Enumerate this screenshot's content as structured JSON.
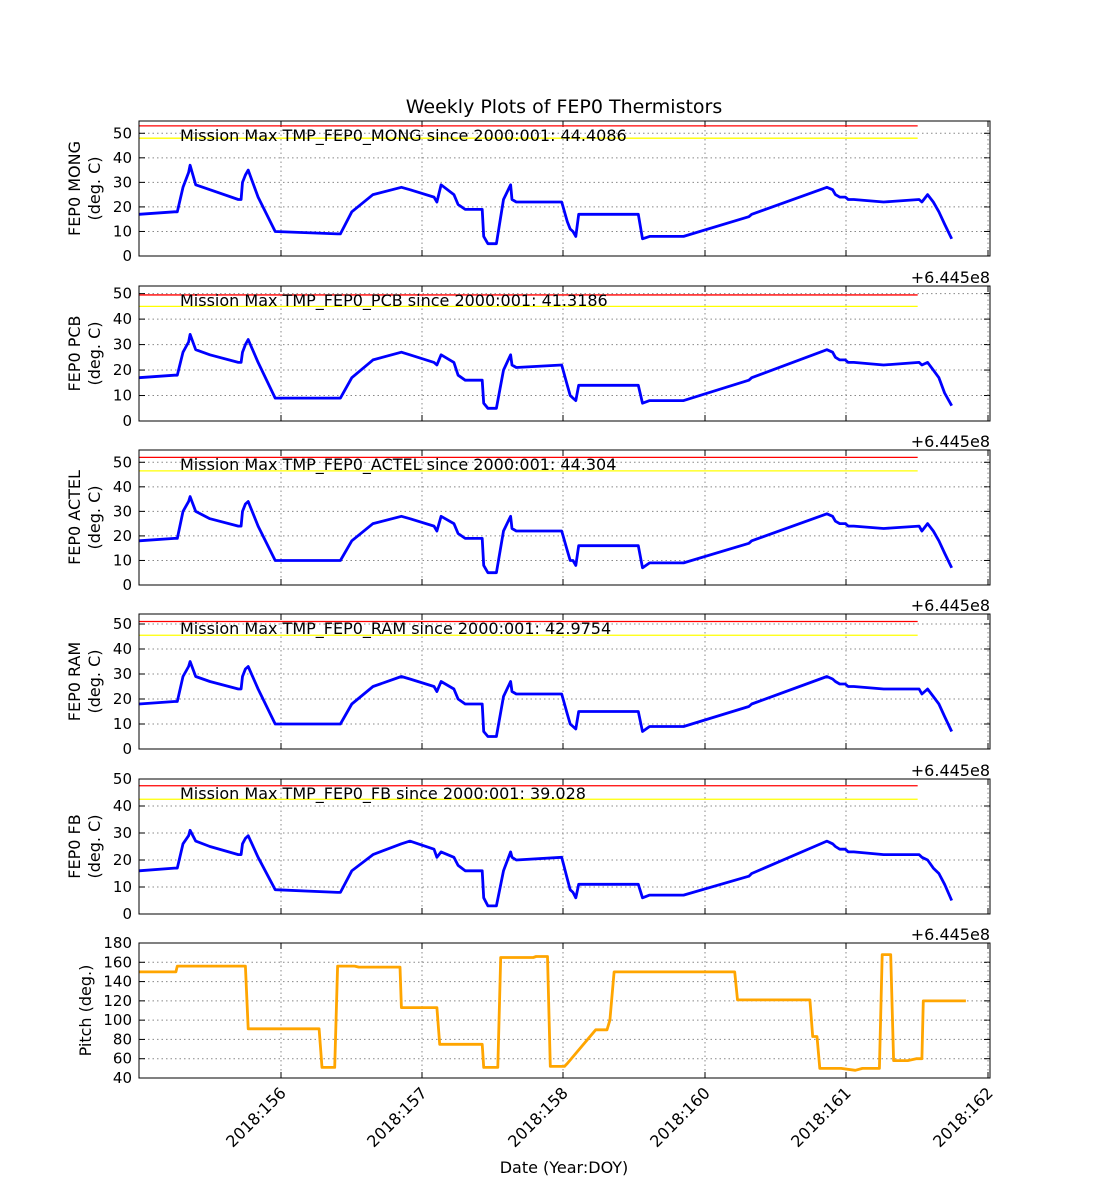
{
  "figure": {
    "title": "Weekly Plots of FEP0 Thermistors",
    "xlabel": "Date (Year:DOY)",
    "x_ticks": [
      "2018:156",
      "2018:157",
      "2018:158",
      "2018:160",
      "2018:161",
      "2018:162"
    ],
    "offset_text": "+6.445e8"
  },
  "chart_data": [
    {
      "type": "line",
      "ylabel": [
        "FEP0 MONG",
        "(deg. C)"
      ],
      "ylim": [
        0,
        55
      ],
      "yticks": [
        "0",
        "10",
        "20",
        "30",
        "40",
        "50"
      ],
      "grid": true,
      "annotation": "Mission Max TMP_FEP0_MONG since 2000:001: 44.4086",
      "limit_lines": [
        {
          "y": 53,
          "color": "#ff0000"
        },
        {
          "y": 48,
          "color": "#ffff00"
        }
      ],
      "series_color": "#0000ff",
      "xlim": [
        0,
        6
      ],
      "x": [
        0,
        0.25,
        0.27,
        0.31,
        0.35,
        0.36,
        0.4,
        0.5,
        0.7,
        0.72,
        0.73,
        0.75,
        0.77,
        0.84,
        0.96,
        1.4,
        1.42,
        1.5,
        1.65,
        1.85,
        1.91,
        2.08,
        2.1,
        2.13,
        2.22,
        2.25,
        2.3,
        2.42,
        2.43,
        2.46,
        2.52,
        2.57,
        2.62,
        2.63,
        2.66,
        2.98,
        3.02,
        3.04,
        3.06,
        3.08,
        3.1,
        3.52,
        3.55,
        3.6,
        3.7,
        3.75,
        3.78,
        3.8,
        3.84,
        4.3,
        4.32,
        4.85,
        4.89,
        4.91,
        4.94,
        4.98,
        5.0,
        5.04,
        5.25,
        5.5,
        5.52,
        5.56,
        5.6,
        5.64,
        5.68,
        5.73
      ],
      "values": [
        17,
        18,
        18,
        28,
        34,
        37,
        29,
        27,
        23,
        23,
        30,
        33,
        35,
        24,
        10,
        9,
        9,
        18,
        25,
        28,
        27,
        24,
        22,
        29,
        25,
        21,
        19,
        19,
        8,
        5,
        5,
        23,
        29,
        23,
        22,
        22,
        14,
        11,
        10,
        8,
        17,
        17,
        7,
        8,
        8,
        8,
        8,
        8,
        8,
        16,
        17,
        28,
        27,
        25,
        24,
        24,
        23,
        23,
        22,
        23,
        22,
        25,
        22,
        18,
        13,
        7
      ]
    },
    {
      "type": "line",
      "ylabel": [
        "FEP0 PCB",
        "(deg. C)"
      ],
      "ylim": [
        0,
        53
      ],
      "yticks": [
        "0",
        "10",
        "20",
        "30",
        "40",
        "50"
      ],
      "grid": true,
      "annotation": "Mission Max TMP_FEP0_PCB since 2000:001: 41.3186",
      "limit_lines": [
        {
          "y": 49.5,
          "color": "#ff0000"
        },
        {
          "y": 45,
          "color": "#ffff00"
        }
      ],
      "series_color": "#0000ff",
      "xlim": [
        0,
        6
      ],
      "x": [
        0,
        0.25,
        0.27,
        0.31,
        0.35,
        0.36,
        0.4,
        0.5,
        0.7,
        0.72,
        0.73,
        0.75,
        0.77,
        0.84,
        0.96,
        1.4,
        1.42,
        1.5,
        1.65,
        1.85,
        1.91,
        2.08,
        2.1,
        2.13,
        2.22,
        2.25,
        2.3,
        2.42,
        2.43,
        2.46,
        2.52,
        2.57,
        2.62,
        2.63,
        2.66,
        2.98,
        3.02,
        3.04,
        3.06,
        3.08,
        3.1,
        3.52,
        3.55,
        3.6,
        3.7,
        3.75,
        3.78,
        3.8,
        3.84,
        4.3,
        4.32,
        4.85,
        4.89,
        4.91,
        4.94,
        4.98,
        5.0,
        5.04,
        5.25,
        5.5,
        5.52,
        5.56,
        5.6,
        5.64,
        5.68,
        5.73
      ],
      "values": [
        17,
        18,
        18,
        27,
        31,
        34,
        28,
        26,
        23,
        23,
        27,
        30,
        32,
        23,
        9,
        9,
        9,
        17,
        24,
        27,
        26,
        23,
        22,
        26,
        23,
        18,
        16,
        16,
        7,
        5,
        5,
        20,
        26,
        22,
        21,
        22,
        14,
        10,
        9,
        8,
        14,
        14,
        7,
        8,
        8,
        8,
        8,
        8,
        8,
        16,
        17,
        28,
        27,
        25,
        24,
        24,
        23,
        23,
        22,
        23,
        22,
        23,
        20,
        17,
        11,
        6
      ]
    },
    {
      "type": "line",
      "ylabel": [
        "FEP0 ACTEL",
        "(deg. C)"
      ],
      "ylim": [
        0,
        55
      ],
      "yticks": [
        "0",
        "10",
        "20",
        "30",
        "40",
        "50"
      ],
      "grid": true,
      "annotation": "Mission Max TMP_FEP0_ACTEL since 2000:001: 44.304",
      "limit_lines": [
        {
          "y": 52,
          "color": "#ff0000"
        },
        {
          "y": 46.5,
          "color": "#ffff00"
        }
      ],
      "series_color": "#0000ff",
      "xlim": [
        0,
        6
      ],
      "x": [
        0,
        0.25,
        0.27,
        0.31,
        0.35,
        0.36,
        0.4,
        0.5,
        0.7,
        0.72,
        0.73,
        0.75,
        0.77,
        0.84,
        0.96,
        1.4,
        1.42,
        1.5,
        1.65,
        1.85,
        1.91,
        2.08,
        2.1,
        2.13,
        2.22,
        2.25,
        2.3,
        2.42,
        2.43,
        2.46,
        2.52,
        2.57,
        2.62,
        2.63,
        2.66,
        2.98,
        3.02,
        3.04,
        3.06,
        3.08,
        3.1,
        3.52,
        3.55,
        3.6,
        3.7,
        3.75,
        3.78,
        3.8,
        3.84,
        4.3,
        4.32,
        4.85,
        4.89,
        4.91,
        4.94,
        4.98,
        5.0,
        5.04,
        5.25,
        5.5,
        5.52,
        5.56,
        5.6,
        5.64,
        5.68,
        5.73
      ],
      "values": [
        18,
        19,
        19,
        30,
        34,
        36,
        30,
        27,
        24,
        24,
        30,
        33,
        34,
        24,
        10,
        10,
        10,
        18,
        25,
        28,
        27,
        24,
        22,
        28,
        25,
        21,
        19,
        19,
        8,
        5,
        5,
        22,
        28,
        23,
        22,
        22,
        14,
        10,
        10,
        8,
        16,
        16,
        7,
        9,
        9,
        9,
        9,
        9,
        9,
        17,
        18,
        29,
        28,
        26,
        25,
        25,
        24,
        24,
        23,
        24,
        22,
        25,
        22,
        18,
        13,
        7
      ]
    },
    {
      "type": "line",
      "ylabel": [
        "FEP0 RAM",
        "(deg. C)"
      ],
      "ylim": [
        0,
        54
      ],
      "yticks": [
        "0",
        "10",
        "20",
        "30",
        "40",
        "50"
      ],
      "grid": true,
      "annotation": "Mission Max TMP_FEP0_RAM since 2000:001: 42.9754",
      "limit_lines": [
        {
          "y": 51,
          "color": "#ff0000"
        },
        {
          "y": 45.5,
          "color": "#ffff00"
        }
      ],
      "series_color": "#0000ff",
      "xlim": [
        0,
        6
      ],
      "x": [
        0,
        0.25,
        0.27,
        0.31,
        0.35,
        0.36,
        0.4,
        0.5,
        0.7,
        0.72,
        0.73,
        0.75,
        0.77,
        0.84,
        0.96,
        1.4,
        1.42,
        1.5,
        1.65,
        1.85,
        1.91,
        2.08,
        2.1,
        2.13,
        2.22,
        2.25,
        2.3,
        2.42,
        2.43,
        2.46,
        2.52,
        2.57,
        2.62,
        2.63,
        2.66,
        2.98,
        3.02,
        3.04,
        3.06,
        3.08,
        3.1,
        3.52,
        3.55,
        3.6,
        3.7,
        3.75,
        3.78,
        3.8,
        3.84,
        4.3,
        4.32,
        4.85,
        4.89,
        4.91,
        4.94,
        4.98,
        5.0,
        5.04,
        5.25,
        5.5,
        5.52,
        5.56,
        5.6,
        5.64,
        5.68,
        5.73
      ],
      "values": [
        18,
        19,
        19,
        29,
        33,
        35,
        29,
        27,
        24,
        24,
        29,
        32,
        33,
        24,
        10,
        10,
        10,
        18,
        25,
        29,
        28,
        25,
        23,
        27,
        24,
        20,
        18,
        18,
        7,
        5,
        5,
        21,
        27,
        23,
        22,
        22,
        14,
        10,
        9,
        8,
        15,
        15,
        7,
        9,
        9,
        9,
        9,
        9,
        9,
        17,
        18,
        29,
        28,
        27,
        26,
        26,
        25,
        25,
        24,
        24,
        22,
        24,
        21,
        18,
        13,
        7
      ]
    },
    {
      "type": "line",
      "ylabel": [
        "FEP0 FB",
        "(deg. C)"
      ],
      "ylim": [
        0,
        50
      ],
      "yticks": [
        "0",
        "10",
        "20",
        "30",
        "40",
        "50"
      ],
      "grid": true,
      "annotation": "Mission Max TMP_FEP0_FB since 2000:001: 39.028",
      "limit_lines": [
        {
          "y": 47.5,
          "color": "#ff0000"
        },
        {
          "y": 42.5,
          "color": "#ffff00"
        }
      ],
      "series_color": "#0000ff",
      "xlim": [
        0,
        6
      ],
      "x": [
        0,
        0.25,
        0.27,
        0.31,
        0.35,
        0.36,
        0.4,
        0.5,
        0.7,
        0.72,
        0.73,
        0.75,
        0.77,
        0.84,
        0.96,
        1.4,
        1.42,
        1.5,
        1.65,
        1.85,
        1.91,
        2.08,
        2.1,
        2.13,
        2.22,
        2.25,
        2.3,
        2.42,
        2.43,
        2.46,
        2.52,
        2.57,
        2.62,
        2.63,
        2.66,
        2.98,
        3.02,
        3.04,
        3.06,
        3.08,
        3.1,
        3.52,
        3.55,
        3.6,
        3.7,
        3.75,
        3.78,
        3.8,
        3.84,
        4.3,
        4.32,
        4.85,
        4.89,
        4.91,
        4.94,
        4.98,
        5.0,
        5.04,
        5.25,
        5.5,
        5.52,
        5.56,
        5.6,
        5.64,
        5.68,
        5.73
      ],
      "values": [
        16,
        17,
        17,
        26,
        29,
        31,
        27,
        25,
        22,
        22,
        26,
        28,
        29,
        21,
        9,
        8,
        8,
        16,
        22,
        26,
        27,
        24,
        21,
        23,
        21,
        18,
        16,
        16,
        6,
        3,
        3,
        16,
        23,
        21,
        20,
        21,
        13,
        9,
        8,
        6,
        11,
        11,
        6,
        7,
        7,
        7,
        7,
        7,
        7,
        14,
        15,
        27,
        26,
        25,
        24,
        24,
        23,
        23,
        22,
        22,
        21,
        20,
        17,
        15,
        11,
        5
      ]
    },
    {
      "type": "line",
      "ylabel": [
        "Pitch (deg.)"
      ],
      "ylim": [
        40,
        180
      ],
      "yticks": [
        "40",
        "60",
        "80",
        "100",
        "120",
        "140",
        "160",
        "180"
      ],
      "grid": true,
      "series_color": "#ffa500",
      "xlim": [
        0,
        6
      ],
      "x": [
        0,
        0.26,
        0.27,
        0.75,
        0.77,
        1.27,
        1.29,
        1.38,
        1.4,
        1.52,
        1.55,
        1.84,
        1.85,
        2.1,
        2.12,
        2.42,
        2.43,
        2.53,
        2.55,
        2.78,
        2.8,
        2.88,
        2.9,
        3.0,
        3.02,
        3.22,
        3.24,
        3.3,
        3.32,
        3.35,
        4.2,
        4.22,
        4.73,
        4.75,
        4.78,
        4.8,
        4.95,
        5.05,
        5.1,
        5.22,
        5.24,
        5.3,
        5.32,
        5.4,
        5.42,
        5.48,
        5.52,
        5.53,
        5.83
      ],
      "values": [
        150,
        150,
        156,
        156,
        91,
        91,
        51,
        51,
        156,
        156,
        155,
        155,
        113,
        113,
        75,
        75,
        51,
        51,
        165,
        165,
        166,
        166,
        52,
        52,
        55,
        90,
        90,
        90,
        100,
        150,
        150,
        121,
        121,
        83,
        83,
        50,
        50,
        48,
        50,
        50,
        168,
        168,
        58,
        58,
        58,
        60,
        60,
        120,
        120
      ]
    }
  ]
}
